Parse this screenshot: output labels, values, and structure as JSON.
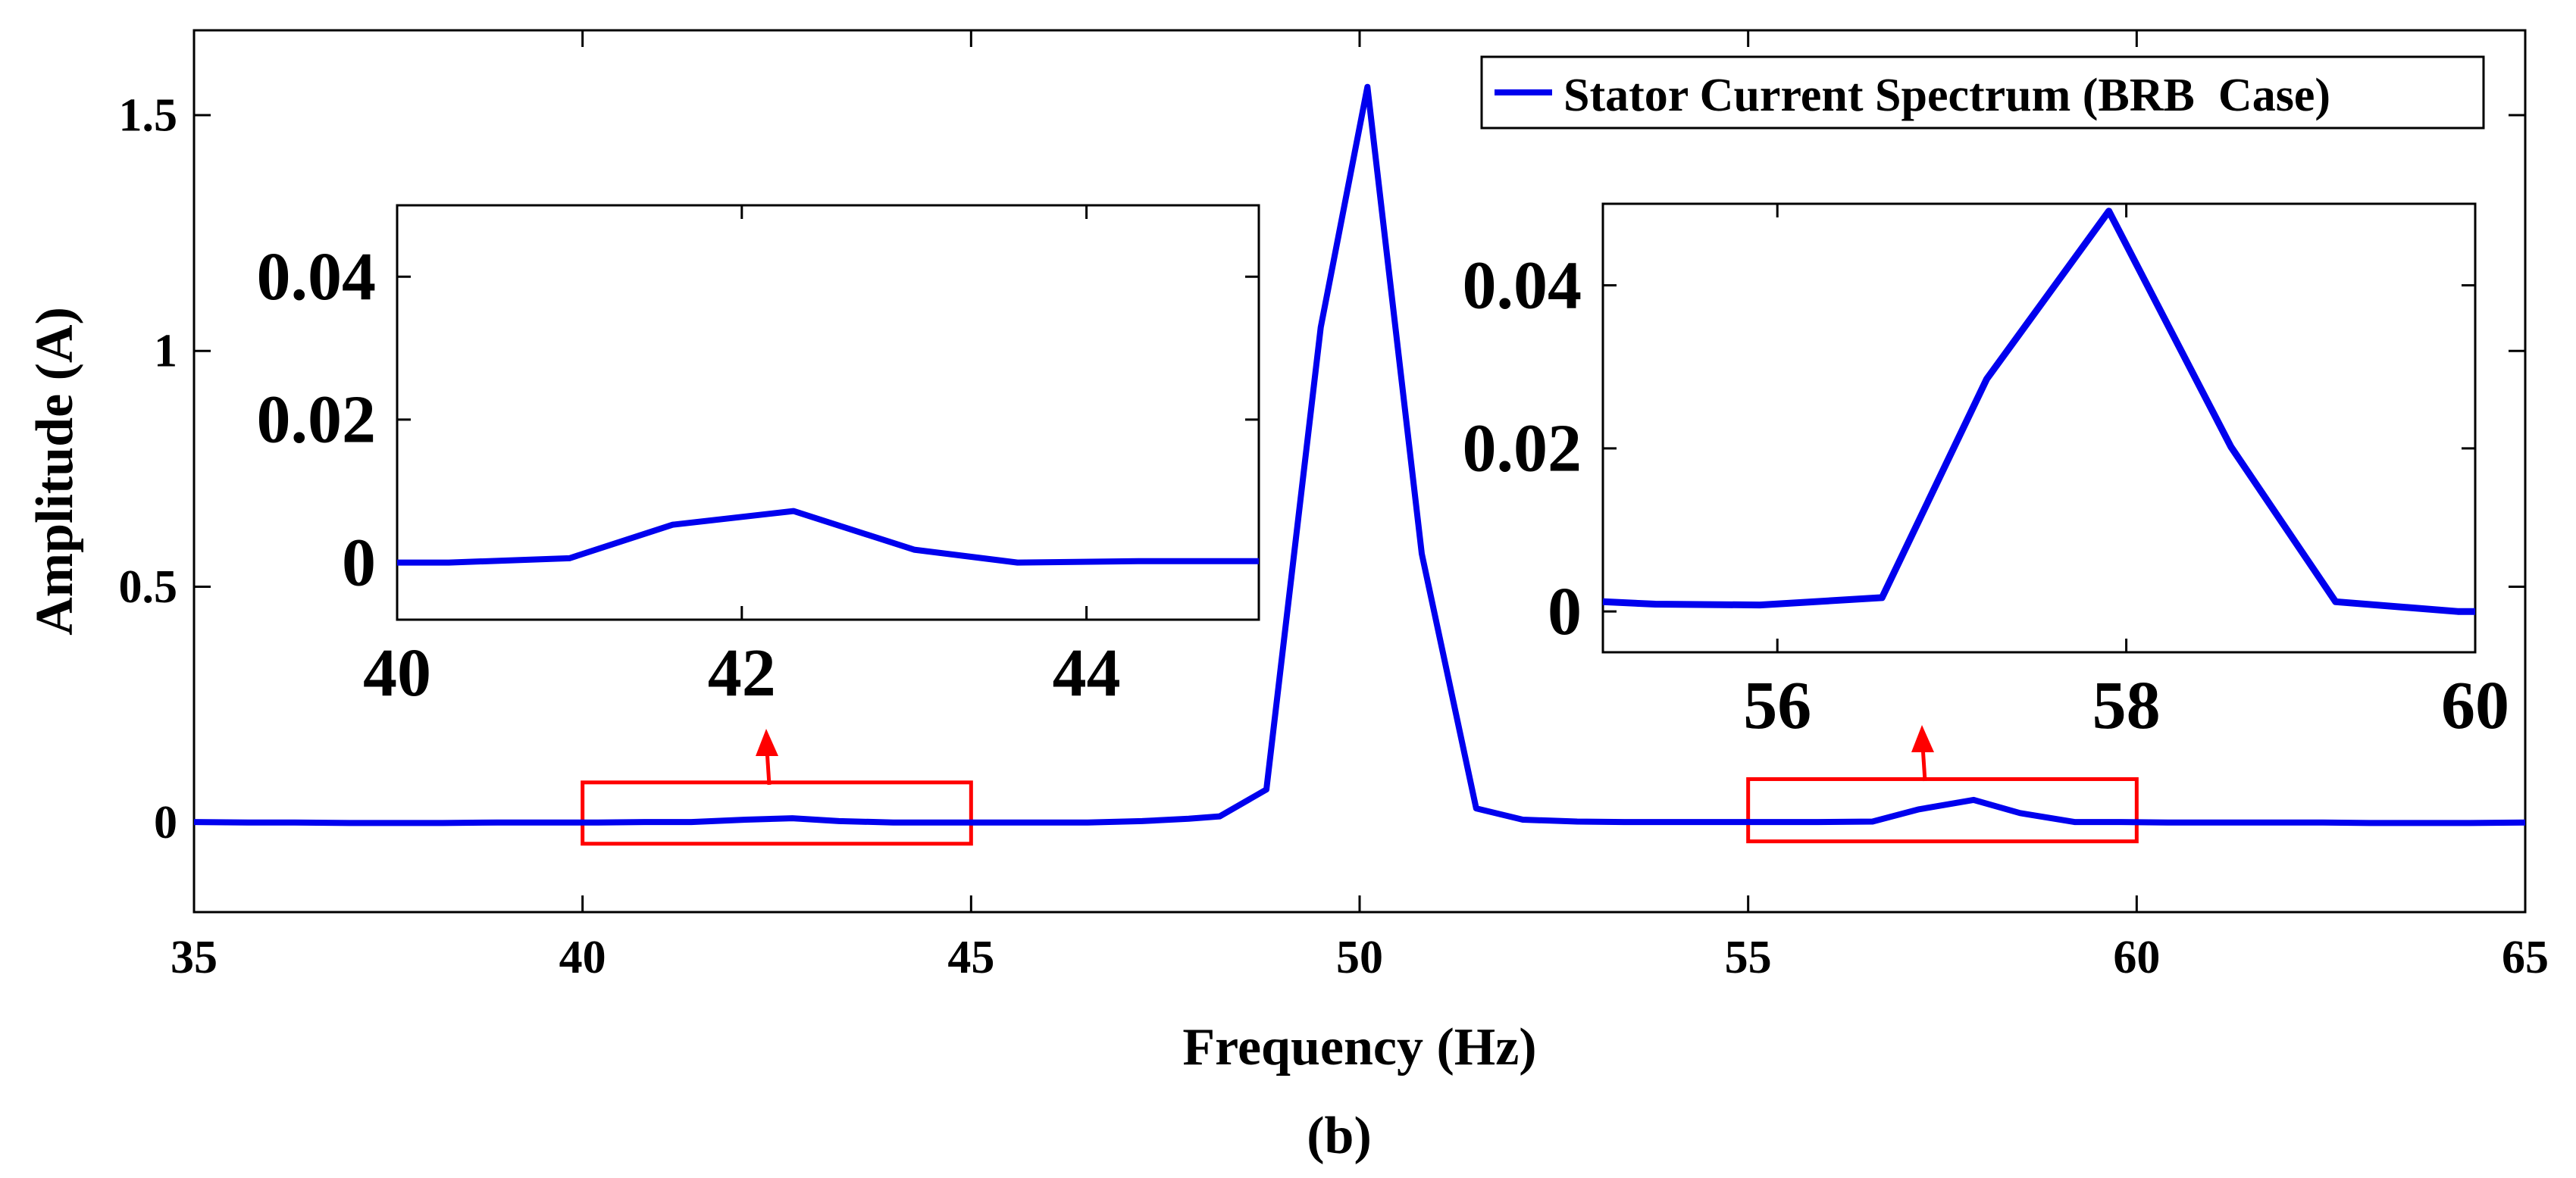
{
  "chart_data": [
    {
      "type": "line",
      "role": "main",
      "title": "",
      "xlabel": "Frequency (Hz)",
      "ylabel": "Amplitude (A)",
      "caption": "(b)",
      "xlim": [
        35,
        65
      ],
      "ylim": [
        -0.19,
        1.68
      ],
      "xticks": [
        "35",
        "40",
        "45",
        "50",
        "55",
        "60",
        "65"
      ],
      "xtick_values": [
        35,
        40,
        45,
        50,
        55,
        60,
        65
      ],
      "yticks": [
        "0",
        "0.5",
        "1",
        "1.5"
      ],
      "ytick_values": [
        0,
        0.5,
        1,
        1.5
      ],
      "legend": {
        "position": "top-right",
        "label": "Stator Current Spectrum (BRB  Case)"
      },
      "series": [
        {
          "name": "Stator Current Spectrum (BRB  Case)",
          "color": "#0000ee",
          "x": [
            35,
            35.7,
            36.3,
            37,
            37.6,
            38.2,
            38.9,
            39.5,
            40.2,
            40.8,
            41.4,
            42.1,
            42.7,
            43.3,
            44,
            44.6,
            45.3,
            45.9,
            46.5,
            47.2,
            47.8,
            48.2,
            48.8,
            49.5,
            50.1,
            50.8,
            51.5,
            52.1,
            52.8,
            53.4,
            54,
            54.7,
            55.3,
            55.9,
            56.6,
            57.2,
            57.9,
            58.5,
            59.2,
            59.8,
            60.4,
            61.1,
            61.7,
            62.4,
            63,
            63.6,
            64.3,
            65
          ],
          "values": [
            0.001,
            0,
            0,
            -0.001,
            -0.001,
            -0.001,
            0,
            0,
            0,
            0.001,
            0.001,
            0.006,
            0.009,
            0.003,
            0,
            0,
            0,
            0,
            0,
            0.003,
            0.008,
            0.013,
            0.07,
            1.05,
            1.56,
            0.57,
            0.03,
            0.006,
            0.002,
            0.001,
            0.001,
            0.001,
            0.001,
            0.001,
            0.002,
            0.028,
            0.048,
            0.02,
            0.001,
            0.001,
            0,
            0,
            0,
            0,
            -0.001,
            -0.001,
            -0.001,
            0
          ]
        }
      ],
      "highlights": [
        {
          "label": "zoom-left",
          "x_range": [
            40,
            45
          ],
          "y_range": [
            -0.045,
            0.085
          ]
        },
        {
          "label": "zoom-right",
          "x_range": [
            55,
            60
          ],
          "y_range": [
            -0.04,
            0.092
          ]
        }
      ]
    },
    {
      "type": "line",
      "role": "inset-left",
      "xlim": [
        40,
        45
      ],
      "ylim": [
        -0.008,
        0.05
      ],
      "xticks": [
        "40",
        "42",
        "44"
      ],
      "xtick_values": [
        40,
        42,
        44
      ],
      "yticks": [
        "0",
        "0.02",
        "0.04"
      ],
      "ytick_values": [
        0,
        0.02,
        0.04
      ],
      "series": [
        {
          "name": "Stator Current Spectrum (BRB  Case)",
          "color": "#0000ee",
          "x": [
            40,
            40.3,
            41,
            41.6,
            42.3,
            43,
            43.6,
            44.3,
            45
          ],
          "values": [
            0,
            0,
            0.0006,
            0.0053,
            0.0072,
            0.0018,
            0,
            0.0002,
            0.0002
          ]
        }
      ]
    },
    {
      "type": "line",
      "role": "inset-right",
      "xlim": [
        55,
        60
      ],
      "ylim": [
        -0.005,
        0.05
      ],
      "xticks": [
        "56",
        "58",
        "60"
      ],
      "xtick_values": [
        56,
        58,
        60
      ],
      "yticks": [
        "0",
        "0.02",
        "0.04"
      ],
      "ytick_values": [
        0,
        0.02,
        0.04
      ],
      "series": [
        {
          "name": "Stator Current Spectrum (BRB  Case)",
          "color": "#0000ee",
          "x": [
            55,
            55.3,
            55.9,
            56.6,
            57.2,
            57.9,
            58.6,
            59.2,
            59.9,
            60
          ],
          "values": [
            0.0012,
            0.0009,
            0.0008,
            0.0017,
            0.0285,
            0.0491,
            0.0202,
            0.0012,
            0,
            0
          ]
        }
      ]
    }
  ]
}
